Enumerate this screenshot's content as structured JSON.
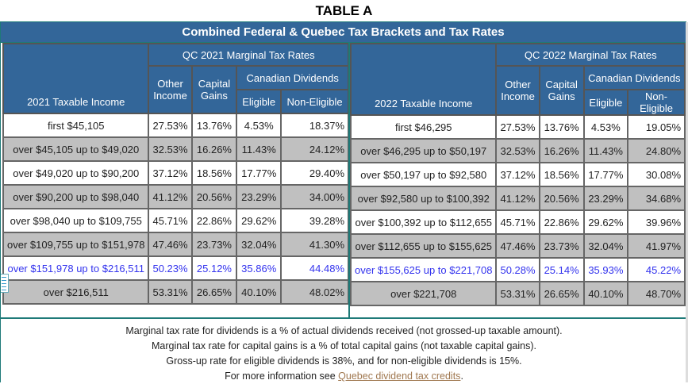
{
  "heading": "TABLE A",
  "title": "Combined Federal & Quebec Tax Brackets and Tax Rates",
  "footnote_link_color": "#a07850",
  "header_color": "#336699",
  "highlight_color": "#3333ee",
  "tables": [
    {
      "group_label": "QC 2021 Marginal Tax Rates",
      "income_label": "2021 Taxable Income",
      "col_other": "Other Income",
      "col_capital": "Capital Gains",
      "col_dividends": "Canadian Dividends",
      "col_eligible": "Eligible",
      "col_noneligible": "Non-Eligible",
      "rows": [
        {
          "income": "first $45,105",
          "other": "27.53%",
          "capital": "13.76%",
          "eligible": "4.53%",
          "noneligible": "18.37%"
        },
        {
          "income": "over $45,105 up to $49,020",
          "other": "32.53%",
          "capital": "16.26%",
          "eligible": "11.43%",
          "noneligible": "24.12%"
        },
        {
          "income": "over $49,020 up to $90,200",
          "other": "37.12%",
          "capital": "18.56%",
          "eligible": "17.77%",
          "noneligible": "29.40%"
        },
        {
          "income": "over $90,200 up to $98,040",
          "other": "41.12%",
          "capital": "20.56%",
          "eligible": "23.29%",
          "noneligible": "34.00%"
        },
        {
          "income": "over $98,040 up to $109,755",
          "other": "45.71%",
          "capital": "22.86%",
          "eligible": "29.62%",
          "noneligible": "39.28%"
        },
        {
          "income": "over $109,755 up to $151,978",
          "other": "47.46%",
          "capital": "23.73%",
          "eligible": "32.04%",
          "noneligible": "41.30%"
        },
        {
          "income": "over $151,978 up to $216,511",
          "other": "50.23%",
          "capital": "25.12%",
          "eligible": "35.86%",
          "noneligible": "44.48%"
        },
        {
          "income": "over $216,511",
          "other": "53.31%",
          "capital": "26.65%",
          "eligible": "40.10%",
          "noneligible": "48.02%"
        }
      ]
    },
    {
      "group_label": "QC 2022 Marginal Tax Rates",
      "income_label": "2022 Taxable Income",
      "col_other": "Other Income",
      "col_capital": "Capital Gains",
      "col_dividends": "Canadian Dividends",
      "col_eligible": "Eligible",
      "col_noneligible": "Non-Eligible",
      "rows": [
        {
          "income": "first $46,295",
          "other": "27.53%",
          "capital": "13.76%",
          "eligible": "4.53%",
          "noneligible": "19.05%"
        },
        {
          "income": "over $46,295 up to $50,197",
          "other": "32.53%",
          "capital": "16.26%",
          "eligible": "11.43%",
          "noneligible": "24.80%"
        },
        {
          "income": "over $50,197 up to $92,580",
          "other": "37.12%",
          "capital": "18.56%",
          "eligible": "17.77%",
          "noneligible": "30.08%"
        },
        {
          "income": "over $92,580 up to $100,392",
          "other": "41.12%",
          "capital": "20.56%",
          "eligible": "23.29%",
          "noneligible": "34.68%"
        },
        {
          "income": "over $100,392 up to $112,655",
          "other": "45.71%",
          "capital": "22.86%",
          "eligible": "29.62%",
          "noneligible": "39.96%"
        },
        {
          "income": "over $112,655 up to $155,625",
          "other": "47.46%",
          "capital": "23.73%",
          "eligible": "32.04%",
          "noneligible": "41.97%"
        },
        {
          "income": "over $155,625 up to $221,708",
          "other": "50.28%",
          "capital": "25.14%",
          "eligible": "35.93%",
          "noneligible": "45.22%"
        },
        {
          "income": "over $221,708",
          "other": "53.31%",
          "capital": "26.65%",
          "eligible": "40.10%",
          "noneligible": "48.70%"
        }
      ]
    }
  ],
  "highlighted_row_index": 6,
  "notes": [
    "Marginal tax rate for dividends is a % of actual dividends received (not grossed-up taxable amount).",
    "Marginal tax rate for capital gains is a % of total capital gains (not taxable capital gains).",
    "Gross-up rate for eligible dividends is 38%, and for non-eligible dividends is 15%."
  ],
  "more_info_prefix": "For more information see ",
  "more_info_link": "Quebec dividend tax credits",
  "more_info_suffix": "."
}
